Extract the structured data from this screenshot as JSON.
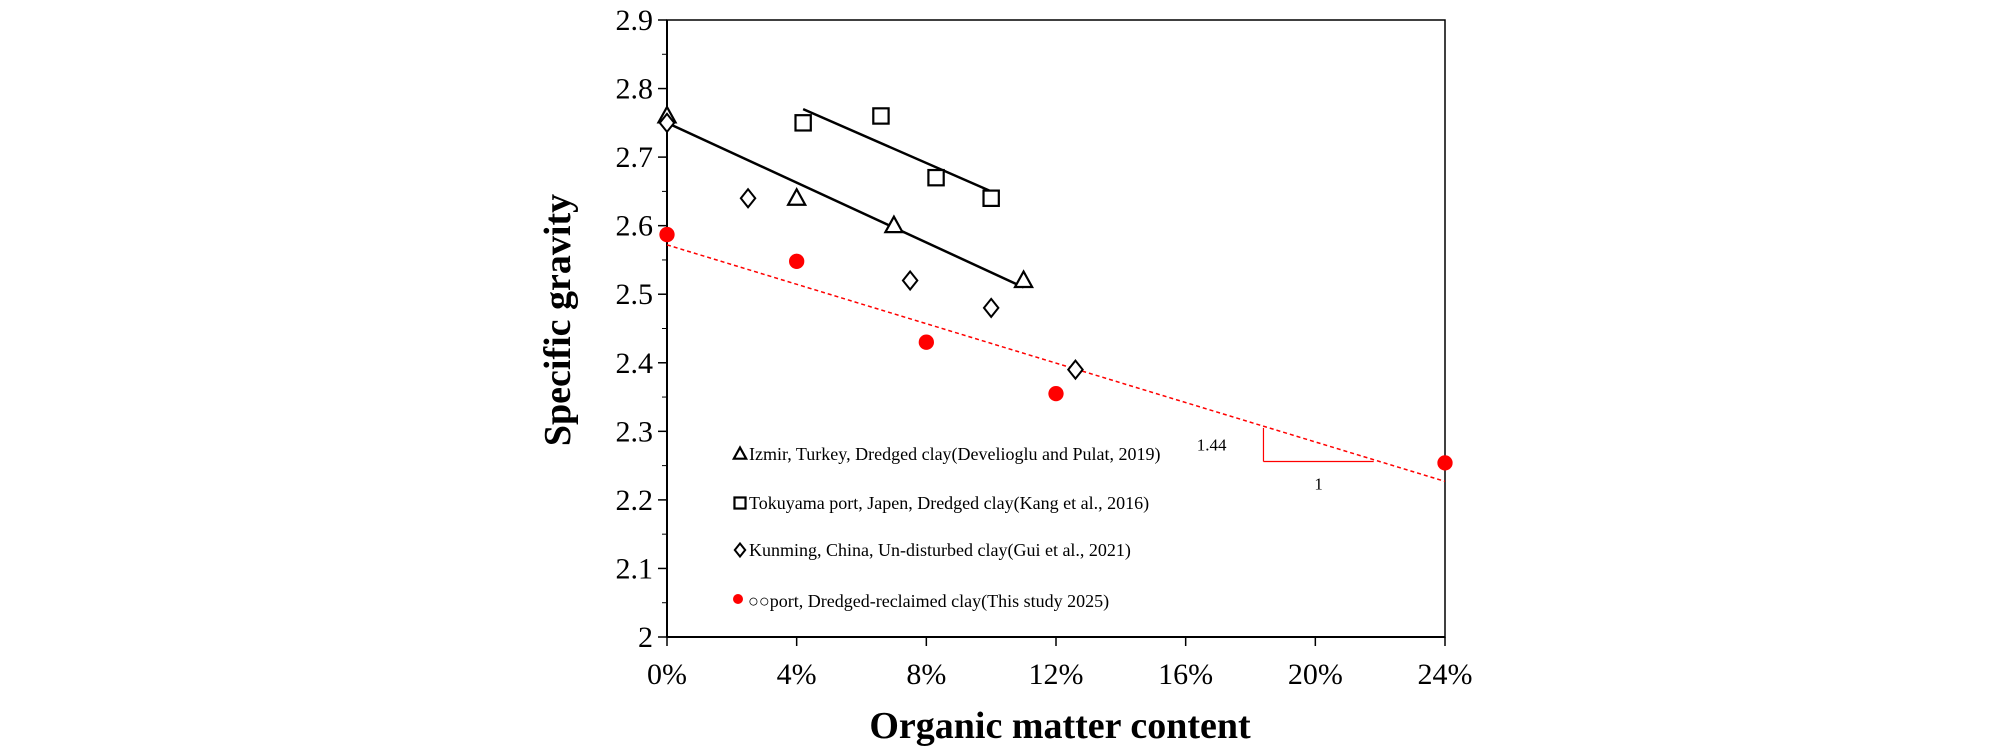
{
  "chart_data": {
    "type": "scatter",
    "xlabel": "Organic matter content",
    "ylabel": "Specific gravity",
    "xlim": [
      0,
      24
    ],
    "ylim": [
      2.0,
      2.9
    ],
    "x_ticks": [
      0,
      4,
      8,
      12,
      16,
      20,
      24
    ],
    "x_tick_labels": [
      "0%",
      "4%",
      "8%",
      "12%",
      "16%",
      "20%",
      "24%"
    ],
    "y_ticks": [
      2.0,
      2.1,
      2.2,
      2.3,
      2.4,
      2.5,
      2.6,
      2.7,
      2.8,
      2.9
    ],
    "y_tick_labels": [
      "2",
      "2.1",
      "2.2",
      "2.3",
      "2.4",
      "2.5",
      "2.6",
      "2.7",
      "2.8",
      "2.9"
    ],
    "grid": false,
    "legend_position": "lower-left inside plot",
    "series": [
      {
        "name": "Izmir, Turkey, Dredged clay(Develioglu and Pulat, 2019)",
        "marker": "triangle-open",
        "color": "#000000",
        "points": [
          [
            0,
            2.76
          ],
          [
            4,
            2.64
          ],
          [
            7,
            2.6
          ],
          [
            11,
            2.52
          ]
        ],
        "trendline": {
          "x": [
            0,
            11
          ],
          "y": [
            2.75,
            2.51
          ],
          "style": "solid",
          "color": "#000000"
        }
      },
      {
        "name": "Tokuyama port, Japen, Dredged clay(Kang et al., 2016)",
        "marker": "square-open",
        "color": "#000000",
        "points": [
          [
            4.2,
            2.75
          ],
          [
            6.6,
            2.76
          ],
          [
            8.3,
            2.67
          ],
          [
            10,
            2.64
          ]
        ],
        "trendline": {
          "x": [
            4.2,
            10
          ],
          "y": [
            2.77,
            2.65
          ],
          "style": "solid",
          "color": "#000000"
        }
      },
      {
        "name": "Kunming, China, Un-disturbed clay(Gui et al., 2021)",
        "marker": "diamond-open",
        "color": "#000000",
        "points": [
          [
            0,
            2.75
          ],
          [
            2.5,
            2.64
          ],
          [
            7.5,
            2.52
          ],
          [
            10,
            2.48
          ],
          [
            12.6,
            2.39
          ]
        ]
      },
      {
        "name": "○○port, Dredged-reclaimed clay(This study 2025)",
        "marker": "circle-filled",
        "color": "#ff0000",
        "points": [
          [
            0,
            2.587
          ],
          [
            4,
            2.548
          ],
          [
            8,
            2.43
          ],
          [
            12,
            2.355
          ],
          [
            24,
            2.254
          ]
        ],
        "trendline": {
          "x": [
            0,
            24
          ],
          "y": [
            2.572,
            2.227
          ],
          "style": "dashed",
          "color": "#ff0000"
        }
      }
    ],
    "annotations": [
      {
        "text": "1.44",
        "x": 16.8,
        "y": 2.272
      },
      {
        "text": "1",
        "x": 20.1,
        "y": 2.215
      }
    ],
    "slope_triangle": {
      "x_left": 18.4,
      "y_top": 2.305,
      "y_corner": 2.256,
      "x_right": 21.8,
      "color": "#ff0000"
    }
  }
}
